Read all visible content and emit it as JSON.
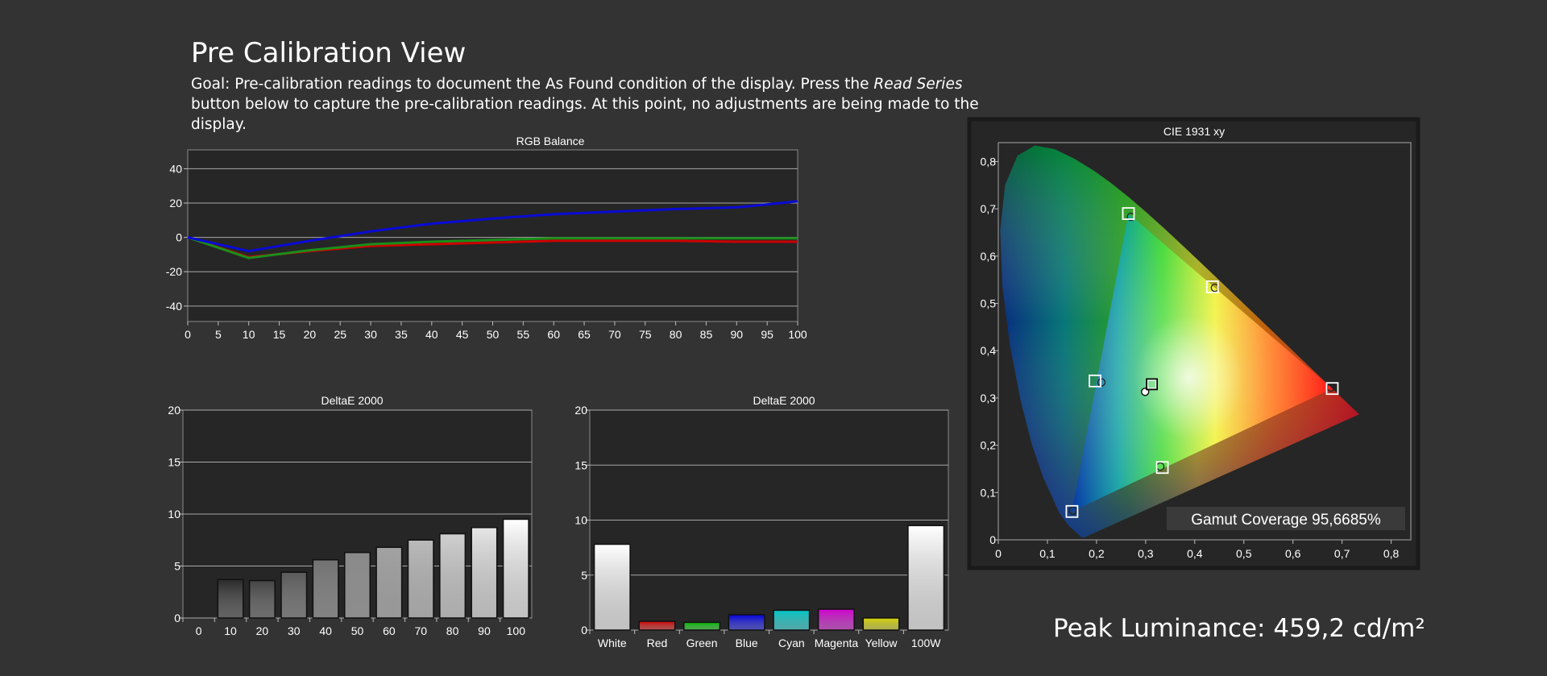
{
  "page": {
    "title": "Pre Calibration View",
    "goal_before": "Goal: Pre-calibration readings to document the As Found condition of the display. Press the ",
    "goal_emphasis": "Read Series",
    "goal_after": " button below to capture the pre-calibration readings. At this point, no adjustments are being made to the display.",
    "peak_label": "Peak Luminance: 459,2 cd/m²"
  },
  "chart_data": [
    {
      "id": "rgb",
      "type": "line",
      "title": "RGB Balance",
      "x": [
        0,
        10,
        20,
        30,
        40,
        50,
        60,
        70,
        80,
        90,
        100
      ],
      "xticks": [
        "0",
        "5",
        "10",
        "15",
        "20",
        "25",
        "30",
        "35",
        "40",
        "45",
        "50",
        "55",
        "60",
        "65",
        "70",
        "75",
        "80",
        "85",
        "90",
        "95",
        "100"
      ],
      "xlim": [
        0,
        100
      ],
      "ylim": [
        -49,
        51
      ],
      "yticks": [
        -40,
        -20,
        0,
        20,
        40
      ],
      "ytick_labels": [
        "-40",
        "-20",
        "0",
        "20",
        "40"
      ],
      "grid": true,
      "series": [
        {
          "color": "#cc0000",
          "values": [
            0,
            -11.5,
            -8,
            -5,
            -4,
            -3,
            -2,
            -2,
            -2,
            -2.5,
            -2.5
          ]
        },
        {
          "color": "#1a8f1a",
          "values": [
            0,
            -12,
            -7.5,
            -4,
            -2.5,
            -1.5,
            -0.5,
            -0.5,
            -0.5,
            -0.5,
            -0.5
          ]
        },
        {
          "color": "#0a0ad6",
          "values": [
            0,
            -8,
            -2,
            3.5,
            8,
            11,
            13.5,
            15,
            16.5,
            17.5,
            21
          ]
        }
      ]
    },
    {
      "id": "gray",
      "type": "bar",
      "title": "DeltaE 2000",
      "categories": [
        "0",
        "10",
        "20",
        "30",
        "40",
        "50",
        "60",
        "70",
        "80",
        "90",
        "100"
      ],
      "values": [
        0,
        3.7,
        3.6,
        4.4,
        5.6,
        6.3,
        6.8,
        7.5,
        8.1,
        8.7,
        9.5
      ],
      "colors": [
        "#000000",
        "#2a2a2a",
        "#444444",
        "#5a5a5a",
        "#727272",
        "#8a8a8a",
        "#a2a2a2",
        "#bababa",
        "#d0d0d0",
        "#e6e6e6",
        "#ffffff"
      ],
      "ylim": [
        0,
        20
      ],
      "yticks": [
        0,
        5,
        10,
        15,
        20
      ],
      "ytick_labels": [
        "0",
        "5",
        "10",
        "15",
        "20"
      ],
      "grid": true
    },
    {
      "id": "colors",
      "type": "bar",
      "title": "DeltaE 2000",
      "categories": [
        "White",
        "Red",
        "Green",
        "Blue",
        "Cyan",
        "Magenta",
        "Yellow",
        "100W"
      ],
      "values": [
        7.8,
        0.8,
        0.7,
        1.4,
        1.8,
        1.9,
        1.1,
        9.5
      ],
      "colors": [
        "#ffffff",
        "#d00000",
        "#00c000",
        "#0000e0",
        "#00c8c8",
        "#d000d0",
        "#d6d600",
        "#ffffff"
      ],
      "ylim": [
        0,
        20
      ],
      "yticks": [
        0,
        5,
        10,
        15,
        20
      ],
      "ytick_labels": [
        "0",
        "5",
        "10",
        "15",
        "20"
      ],
      "grid": true
    },
    {
      "id": "cie",
      "type": "scatter",
      "title": "CIE 1931 xy",
      "xlim": [
        0,
        0.84
      ],
      "ylim": [
        0,
        0.84
      ],
      "xticks": [
        0,
        0.1,
        0.2,
        0.3,
        0.4,
        0.5,
        0.6,
        0.7,
        0.8
      ],
      "xtick_labels": [
        "0",
        "0,1",
        "0,2",
        "0,3",
        "0,4",
        "0,5",
        "0,6",
        "0,7",
        "0,8"
      ],
      "yticks": [
        0,
        0.1,
        0.2,
        0.3,
        0.4,
        0.5,
        0.6,
        0.7,
        0.8
      ],
      "ytick_labels": [
        "0",
        "0,1",
        "0,2",
        "0,3",
        "0,4",
        "0,5",
        "0,6",
        "0,7",
        "0,8"
      ],
      "gamut_coverage_label": "Gamut Coverage 95,6685%",
      "targets": [
        {
          "name": "red",
          "x": 0.68,
          "y": 0.32
        },
        {
          "name": "green",
          "x": 0.265,
          "y": 0.69
        },
        {
          "name": "blue",
          "x": 0.15,
          "y": 0.06
        },
        {
          "name": "cyan",
          "x": 0.197,
          "y": 0.336
        },
        {
          "name": "magenta",
          "x": 0.334,
          "y": 0.153
        },
        {
          "name": "yellow",
          "x": 0.436,
          "y": 0.535
        },
        {
          "name": "white",
          "x": 0.3127,
          "y": 0.329
        }
      ],
      "measured": [
        {
          "name": "red",
          "x": 0.677,
          "y": 0.322
        },
        {
          "name": "green",
          "x": 0.27,
          "y": 0.683
        },
        {
          "name": "blue",
          "x": 0.152,
          "y": 0.062
        },
        {
          "name": "cyan",
          "x": 0.21,
          "y": 0.333
        },
        {
          "name": "magenta",
          "x": 0.33,
          "y": 0.155
        },
        {
          "name": "yellow",
          "x": 0.441,
          "y": 0.533
        },
        {
          "name": "white",
          "x": 0.299,
          "y": 0.313
        }
      ]
    }
  ]
}
